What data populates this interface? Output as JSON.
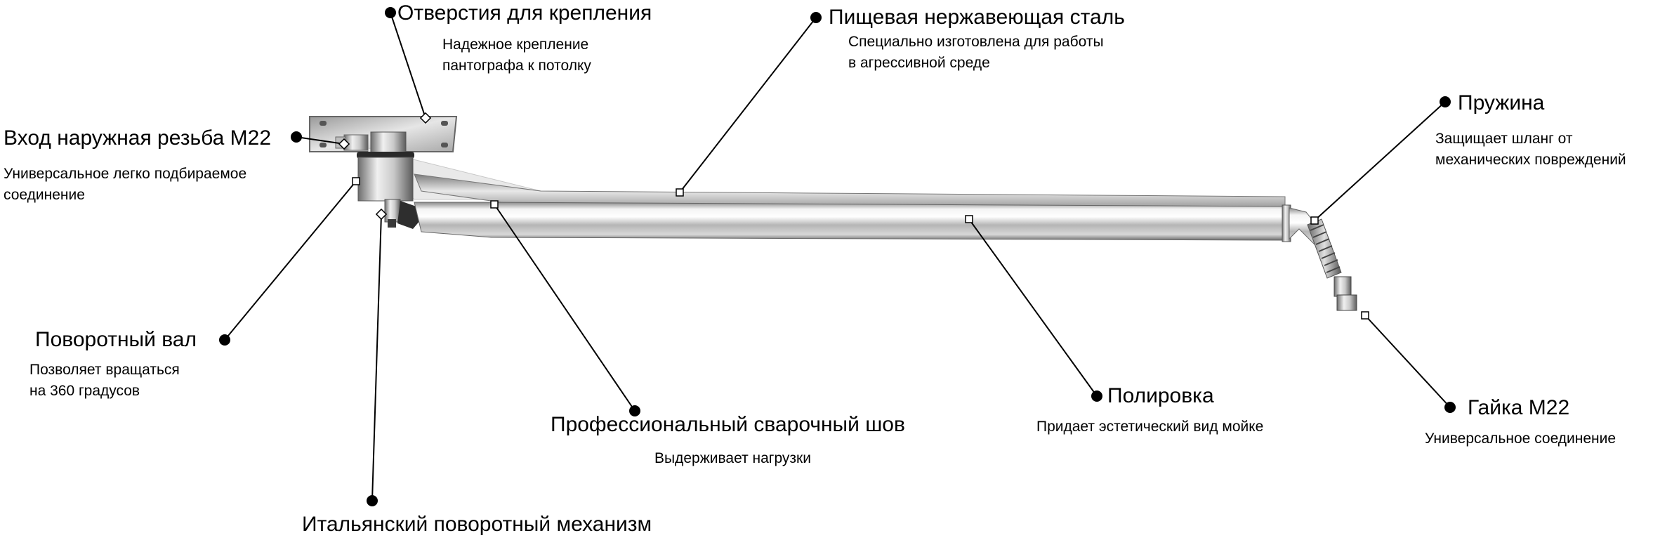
{
  "callouts": [
    {
      "title": "Отверстия для крепления",
      "desc": "Надежное крепление\nпантографа к потолку"
    },
    {
      "title": "Пищевая нержавеющая сталь",
      "desc": "Специально изготовлена для работы\nв агрессивной среде"
    },
    {
      "title": "Вход наружная резьба М22",
      "desc": "Универсальное легко подбираемое\nсоединение"
    },
    {
      "title": "Пружина",
      "desc": "Защищает шланг от\nмеханических повреждений"
    },
    {
      "title": "Поворотный вал",
      "desc": "Позволяет вращаться\nна 360 градусов"
    },
    {
      "title": "Полировка",
      "desc": "Придает эстетический вид мойке"
    },
    {
      "title": "Гайка М22",
      "desc": "Универсальное соединение"
    },
    {
      "title": "Профессиональный сварочный шов",
      "desc": "Выдерживает нагрузки"
    },
    {
      "title": "Итальянский поворотный механизм",
      "desc": ""
    }
  ]
}
